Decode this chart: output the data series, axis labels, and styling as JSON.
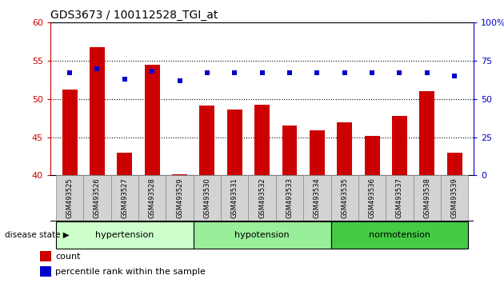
{
  "title": "GDS3673 / 100112528_TGI_at",
  "categories": [
    "GSM493525",
    "GSM493526",
    "GSM493527",
    "GSM493528",
    "GSM493529",
    "GSM493530",
    "GSM493531",
    "GSM493532",
    "GSM493533",
    "GSM493534",
    "GSM493535",
    "GSM493536",
    "GSM493537",
    "GSM493538",
    "GSM493539"
  ],
  "bar_values": [
    51.2,
    56.8,
    43.0,
    54.5,
    40.2,
    49.2,
    48.6,
    49.3,
    46.5,
    45.9,
    47.0,
    45.2,
    47.8,
    51.0,
    43.0
  ],
  "percentile_values": [
    67,
    70,
    63,
    68,
    62,
    67,
    67,
    67,
    67,
    67,
    67,
    67,
    67,
    67,
    65
  ],
  "bar_color": "#cc0000",
  "percentile_color": "#0000cc",
  "ylim_left": [
    40,
    60
  ],
  "yticks_left": [
    40,
    45,
    50,
    55,
    60
  ],
  "yticks_right": [
    0,
    25,
    50,
    75,
    100
  ],
  "ytick_labels_right": [
    "0",
    "25",
    "50",
    "75",
    "100%"
  ],
  "groups": [
    {
      "label": "hypertension",
      "start": 0,
      "end": 5,
      "color": "#ccffcc"
    },
    {
      "label": "hypotension",
      "start": 5,
      "end": 10,
      "color": "#99ee99"
    },
    {
      "label": "normotension",
      "start": 10,
      "end": 15,
      "color": "#44cc44"
    }
  ],
  "disease_state_label": "disease state",
  "legend_count_label": "count",
  "legend_percentile_label": "percentile rank within the sample",
  "left_axis_color": "#cc0000",
  "right_axis_color": "#0000cc",
  "bar_width": 0.55,
  "xticklabel_bg": "#d3d3d3"
}
